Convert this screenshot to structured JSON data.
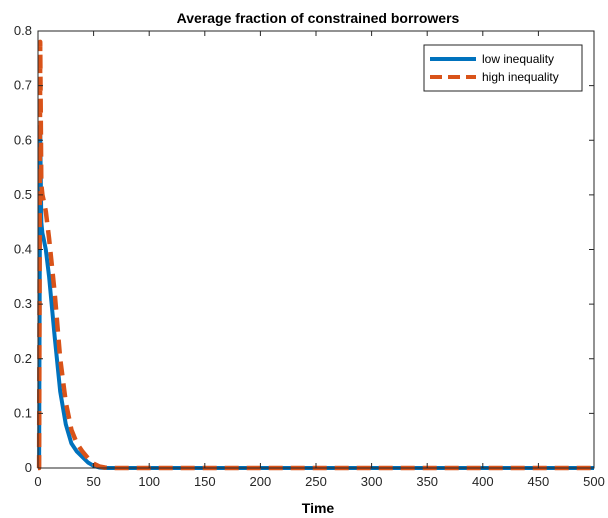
{
  "chart_data": {
    "type": "line",
    "title": "Average fraction of constrained borrowers",
    "xlabel": "Time",
    "ylabel": "",
    "xlim": [
      0,
      500
    ],
    "ylim": [
      0,
      0.8
    ],
    "xticks": [
      0,
      50,
      100,
      150,
      200,
      250,
      300,
      350,
      400,
      450,
      500
    ],
    "yticks": [
      0,
      0.1,
      0.2,
      0.3,
      0.4,
      0.5,
      0.6,
      0.7,
      0.8
    ],
    "xtick_labels": [
      "0",
      "50",
      "100",
      "150",
      "200",
      "250",
      "300",
      "350",
      "400",
      "450",
      "500"
    ],
    "ytick_labels": [
      "0",
      "0.1",
      "0.2",
      "0.3",
      "0.4",
      "0.5",
      "0.6",
      "0.7",
      "0.8"
    ],
    "grid": false,
    "legend_position": "top-right",
    "series": [
      {
        "name": "low inequality",
        "color": "#0072BD",
        "style": "solid",
        "x": [
          0,
          1,
          2,
          3,
          4,
          5,
          7,
          10,
          15,
          20,
          25,
          30,
          35,
          40,
          45,
          50,
          55,
          60,
          70,
          80,
          100,
          200,
          300,
          400,
          500
        ],
        "y": [
          0,
          0.0,
          0.62,
          0.45,
          0.43,
          0.42,
          0.4,
          0.35,
          0.24,
          0.14,
          0.08,
          0.045,
          0.03,
          0.02,
          0.01,
          0.004,
          0.001,
          0.0,
          0.0,
          0.0,
          0.0,
          0.0,
          0.0,
          0.0,
          0.0
        ]
      },
      {
        "name": "high inequality",
        "color": "#D95319",
        "style": "dashed",
        "x": [
          0,
          1,
          2,
          3,
          4,
          5,
          7,
          10,
          15,
          20,
          25,
          30,
          35,
          40,
          45,
          50,
          55,
          60,
          70,
          80,
          100,
          200,
          300,
          400,
          500
        ],
        "y": [
          0,
          0.0,
          0.78,
          0.52,
          0.5,
          0.49,
          0.47,
          0.42,
          0.32,
          0.2,
          0.12,
          0.07,
          0.045,
          0.03,
          0.018,
          0.008,
          0.003,
          0.001,
          0.0,
          0.0,
          0.0,
          0.0,
          0.0,
          0.0,
          0.0
        ]
      }
    ]
  }
}
